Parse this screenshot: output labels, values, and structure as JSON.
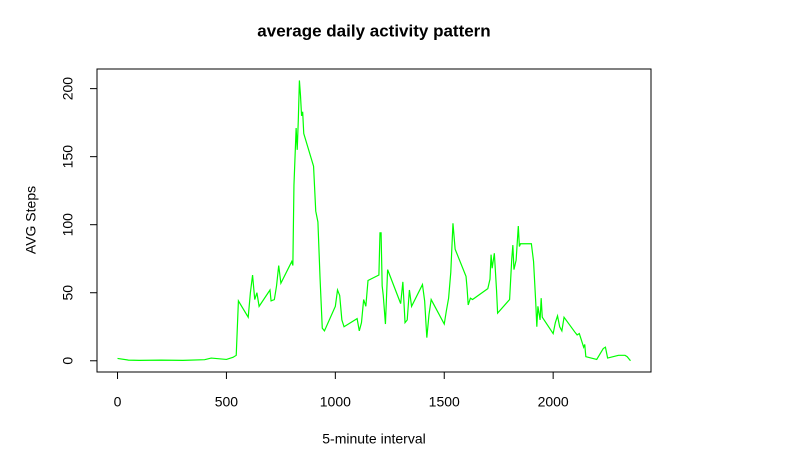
{
  "chart_data": {
    "type": "line",
    "title": "average daily activity pattern",
    "x_label": "5-minute interval",
    "y_label": "AVG Steps",
    "x": [
      0,
      50,
      100,
      200,
      300,
      400,
      430,
      500,
      530,
      545,
      555,
      600,
      610,
      620,
      630,
      640,
      650,
      700,
      705,
      720,
      730,
      740,
      750,
      800,
      805,
      810,
      820,
      825,
      830,
      835,
      840,
      845,
      850,
      855,
      900,
      910,
      920,
      930,
      940,
      950,
      1000,
      1010,
      1020,
      1030,
      1040,
      1100,
      1110,
      1120,
      1130,
      1140,
      1150,
      1200,
      1205,
      1210,
      1215,
      1220,
      1230,
      1240,
      1300,
      1310,
      1320,
      1330,
      1340,
      1350,
      1400,
      1410,
      1420,
      1430,
      1440,
      1500,
      1510,
      1520,
      1530,
      1540,
      1550,
      1600,
      1605,
      1610,
      1620,
      1630,
      1700,
      1710,
      1715,
      1720,
      1730,
      1740,
      1745,
      1800,
      1810,
      1815,
      1820,
      1830,
      1840,
      1845,
      1850,
      1900,
      1910,
      1920,
      1925,
      1930,
      1940,
      1945,
      1950,
      2000,
      2010,
      2020,
      2030,
      2040,
      2050,
      2100,
      2110,
      2120,
      2130,
      2140,
      2145,
      2150,
      2200,
      2230,
      2240,
      2250,
      2300,
      2330,
      2340,
      2355
    ],
    "series": [
      {
        "name": "AVG Steps",
        "color": "#00ff00",
        "values": [
          1.7,
          0.5,
          0.3,
          0.5,
          0.3,
          0.8,
          2,
          1,
          2.5,
          4,
          44,
          32,
          50,
          63,
          45,
          50,
          40,
          52,
          44,
          45,
          55,
          70,
          57,
          73,
          70,
          129,
          171,
          155,
          177,
          206,
          195,
          180,
          183,
          167,
          143,
          110,
          102,
          60,
          24,
          22,
          40,
          52,
          48,
          30,
          25,
          31,
          22,
          28,
          45,
          40,
          59,
          63,
          94,
          94,
          55,
          48,
          27,
          67,
          42,
          58,
          28,
          30,
          52,
          40,
          56,
          44,
          17,
          34,
          45,
          27,
          37,
          46,
          65,
          101,
          82,
          62,
          53,
          41,
          46,
          45,
          53,
          60,
          78,
          68,
          79,
          52,
          35,
          45,
          75,
          85,
          67,
          74,
          99,
          84,
          86,
          86,
          73,
          43,
          25,
          40,
          30,
          46,
          32,
          20,
          28,
          33,
          25,
          22,
          32,
          21,
          19,
          20,
          15,
          10,
          12,
          3,
          1,
          9,
          10,
          2,
          4,
          4,
          3,
          0
        ]
      }
    ],
    "xlim": [
      -94.2,
      2449.2
    ],
    "ylim": [
      -8.25,
      214.42
    ],
    "xticks": [
      0,
      500,
      1000,
      1500,
      2000
    ],
    "yticks": [
      0,
      50,
      100,
      150,
      200
    ]
  }
}
